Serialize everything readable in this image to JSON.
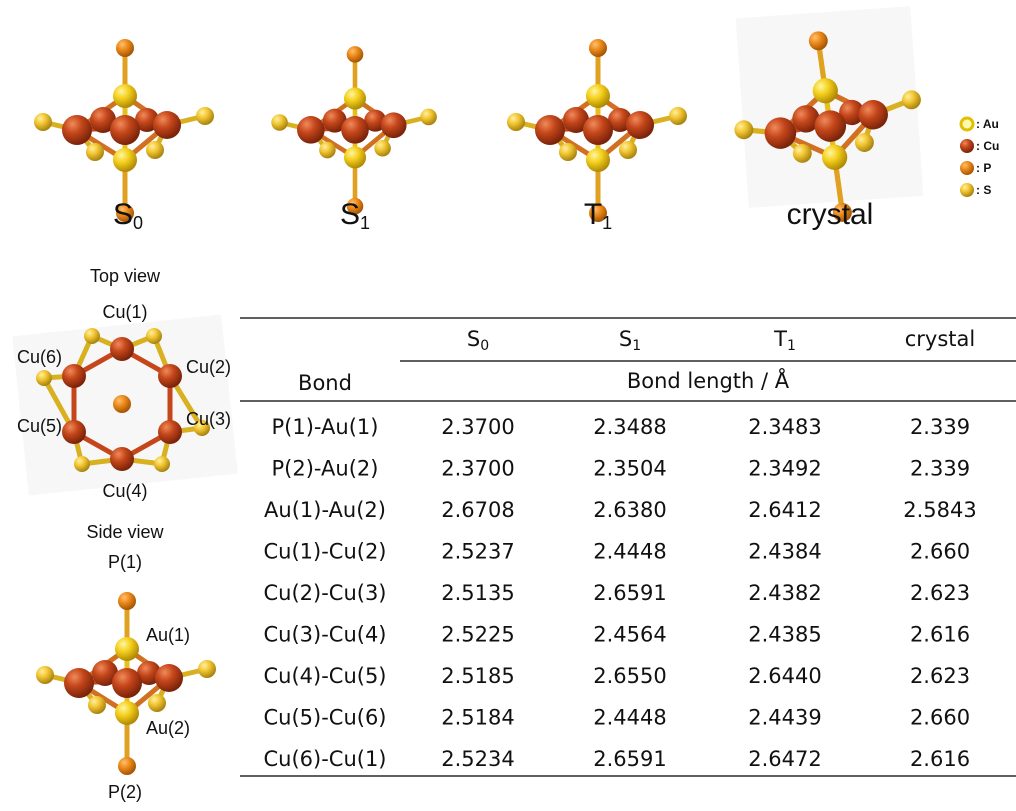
{
  "structures": [
    {
      "base": "S",
      "sub": "0"
    },
    {
      "base": "S",
      "sub": "1"
    },
    {
      "base": "T",
      "sub": "1"
    },
    {
      "base": "crystal"
    }
  ],
  "legend": [
    ": Au",
    ": Cu",
    ": P",
    ": S"
  ],
  "top_view": {
    "title": "Top view",
    "labels": [
      "Cu(1)",
      "Cu(2)",
      "Cu(3)",
      "Cu(4)",
      "Cu(5)",
      "Cu(6)"
    ]
  },
  "side_view": {
    "title": "Side view",
    "labels": [
      "P(1)",
      "Au(1)",
      "Au(2)",
      "P(2)"
    ]
  },
  "table": {
    "columns": [
      {
        "base": "S",
        "sub": "0"
      },
      {
        "base": "S",
        "sub": "1"
      },
      {
        "base": "T",
        "sub": "1"
      },
      {
        "base": "crystal"
      }
    ],
    "row_header": "Bond",
    "group_header": "Bond length / Å",
    "rows": [
      [
        "P(1)-Au(1)",
        "2.3700",
        "2.3488",
        "2.3483",
        "2.339"
      ],
      [
        "P(2)-Au(2)",
        "2.3700",
        "2.3504",
        "2.3492",
        "2.339"
      ],
      [
        "Au(1)-Au(2)",
        "2.6708",
        "2.6380",
        "2.6412",
        "2.5843"
      ],
      [
        "Cu(1)-Cu(2)",
        "2.5237",
        "2.4448",
        "2.4384",
        "2.660"
      ],
      [
        "Cu(2)-Cu(3)",
        "2.5135",
        "2.6591",
        "2.4382",
        "2.623"
      ],
      [
        "Cu(3)-Cu(4)",
        "2.5225",
        "2.4564",
        "2.4385",
        "2.616"
      ],
      [
        "Cu(4)-Cu(5)",
        "2.5185",
        "2.6550",
        "2.6440",
        "2.623"
      ],
      [
        "Cu(5)-Cu(6)",
        "2.5184",
        "2.4448",
        "2.4439",
        "2.660"
      ],
      [
        "Cu(6)-Cu(1)",
        "2.5234",
        "2.6591",
        "2.6472",
        "2.616"
      ]
    ]
  }
}
